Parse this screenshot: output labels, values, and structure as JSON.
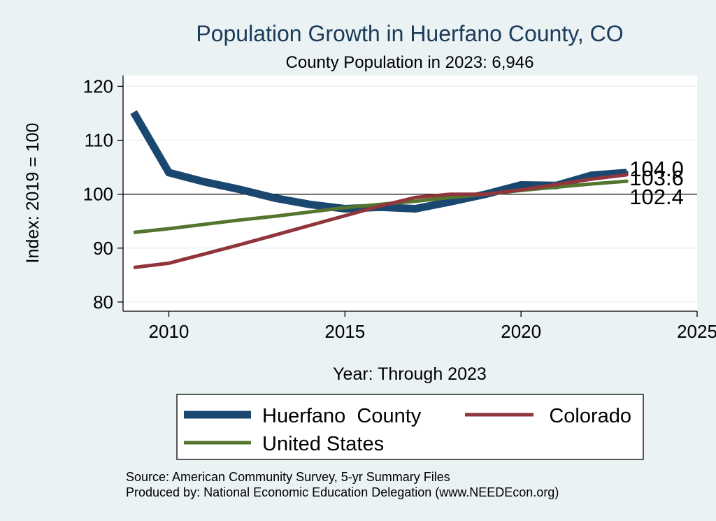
{
  "chart_data": {
    "type": "line",
    "title": "Population Growth in Huerfano County, CO",
    "subtitle": "County Population in 2023: 6,946",
    "xlabel": "Year: Through 2023",
    "ylabel": "Index: 2019 = 100",
    "xlim": [
      2008.7,
      2025
    ],
    "ylim": [
      78.3,
      122
    ],
    "xticks": [
      2010,
      2015,
      2020,
      2025
    ],
    "yticks": [
      80,
      90,
      100,
      110,
      120
    ],
    "reference_line": 100,
    "x": [
      2009,
      2010,
      2011,
      2012,
      2013,
      2014,
      2015,
      2016,
      2017,
      2018,
      2019,
      2020,
      2021,
      2022,
      2023
    ],
    "series": [
      {
        "name": "Huerfano  County",
        "color": "#1a476f",
        "values": [
          115.2,
          104.0,
          102.3,
          100.9,
          99.3,
          98.1,
          97.3,
          97.6,
          97.3,
          98.6,
          100.0,
          101.7,
          101.6,
          103.5,
          104.0
        ],
        "end_label": "104.0"
      },
      {
        "name": "Colorado",
        "color": "#90353b",
        "values": [
          86.4,
          87.2,
          88.9,
          90.6,
          92.4,
          94.2,
          96.0,
          97.8,
          99.4,
          100.0,
          100.0,
          100.8,
          101.8,
          102.8,
          103.6
        ],
        "end_label": "103.6"
      },
      {
        "name": "United States",
        "color": "#55752f",
        "values": [
          92.9,
          93.6,
          94.4,
          95.2,
          95.9,
          96.7,
          97.5,
          98.1,
          98.7,
          99.4,
          100.0,
          100.7,
          101.3,
          101.9,
          102.4
        ],
        "end_label": "102.4"
      }
    ],
    "legend_position": "bottom"
  },
  "source_note": "Source: American Community Survey, 5-yr Summary Files",
  "producer_note": "Produced by: National Economic Education Delegation (www.NEEDEcon.org)"
}
